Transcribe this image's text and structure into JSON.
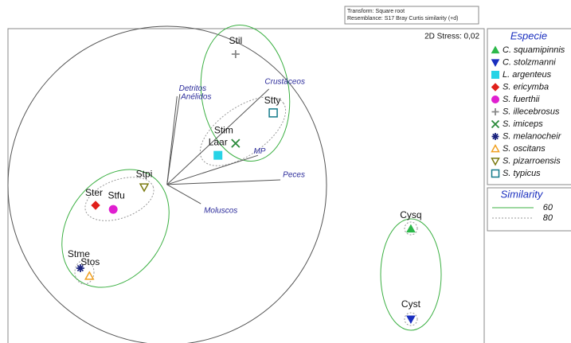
{
  "chart_data": {
    "type": "scatter",
    "transform": "Transform: Square root",
    "resemblance": "Resemblance: S17 Bray Curtis similarity (+d)",
    "stress": "2D Stress: 0,02",
    "xlim": [
      0,
      100
    ],
    "ylim": [
      0,
      100
    ],
    "points": [
      {
        "name": "Cysq",
        "x": 84.6,
        "y": 36.3
      },
      {
        "name": "Cyst",
        "x": 84.6,
        "y": 7.6
      },
      {
        "name": "Laar",
        "x": 44.1,
        "y": 59.7
      },
      {
        "name": "Ster",
        "x": 18.4,
        "y": 43.8
      },
      {
        "name": "Stfu",
        "x": 22.1,
        "y": 42.5
      },
      {
        "name": "Stil",
        "x": 47.8,
        "y": 91.9
      },
      {
        "name": "Stim",
        "x": 47.8,
        "y": 63.5
      },
      {
        "name": "Stme",
        "x": 15.2,
        "y": 23.8
      },
      {
        "name": "Stos",
        "x": 17.1,
        "y": 21.3
      },
      {
        "name": "Stpi",
        "x": 28.6,
        "y": 49.6
      },
      {
        "name": "Stty",
        "x": 55.7,
        "y": 73.2
      }
    ],
    "legend_title": "Especie",
    "species": [
      {
        "name": "C. squamipinnis",
        "color": "#2db84a",
        "marker": "triangle-up"
      },
      {
        "name": "C. stolzmanni",
        "color": "#1a2fbf",
        "marker": "triangle-down"
      },
      {
        "name": "L. argenteus",
        "color": "#27d3e6",
        "marker": "square"
      },
      {
        "name": "S. ericymba",
        "color": "#e0201b",
        "marker": "diamond"
      },
      {
        "name": "S. fuerthii",
        "color": "#e01fd0",
        "marker": "circle"
      },
      {
        "name": "S. illecebrosus",
        "color": "#888888",
        "marker": "plus"
      },
      {
        "name": "S. imiceps",
        "color": "#2a8a3a",
        "marker": "x"
      },
      {
        "name": "S. melanocheir",
        "color": "#1a237e",
        "marker": "asterisk"
      },
      {
        "name": "S. oscitans",
        "color": "#f0a020",
        "marker": "triangle-up-open"
      },
      {
        "name": "S. pizarroensis",
        "color": "#7a7a10",
        "marker": "triangle-down-open"
      },
      {
        "name": "S. typicus",
        "color": "#137a8a",
        "marker": "square-open"
      }
    ],
    "vector_origin": [
      33.4,
      50.4
    ],
    "vectors": [
      {
        "name": "Detritos",
        "x": 36.1,
        "y": 79.2
      },
      {
        "name": "Anélidos",
        "x": 35.5,
        "y": 78.5
      },
      {
        "name": "Crustáceos",
        "x": 54.8,
        "y": 80.8
      },
      {
        "name": "MP",
        "x": 52.5,
        "y": 59.7
      },
      {
        "name": "Peces",
        "x": 57.2,
        "y": 51.9
      },
      {
        "name": "Moluscos",
        "x": 40.5,
        "y": 44.3
      }
    ],
    "similarity_title": "Similarity",
    "similarity": [
      {
        "label": "60",
        "color": "#3cb043",
        "dash": "none"
      },
      {
        "label": "80",
        "color": "#999999",
        "dash": "2,2"
      }
    ]
  }
}
